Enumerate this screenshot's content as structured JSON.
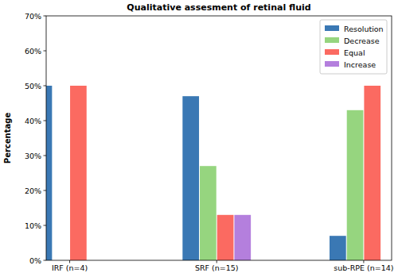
{
  "chart_data": {
    "type": "bar",
    "title": "Qualitative assesment of retinal fluid",
    "y_label": "Percentage",
    "categories": [
      "IRF (n=4)",
      "SRF (n=15)",
      "sub-RPE (n=14)"
    ],
    "series": [
      {
        "name": "Resolution",
        "color": "#3a78b4",
        "values": [
          50,
          47,
          7
        ]
      },
      {
        "name": "Decrease",
        "color": "#96d57f",
        "values": [
          0,
          27,
          43
        ]
      },
      {
        "name": "Equal",
        "color": "#fb6a61",
        "values": [
          50,
          13,
          50
        ]
      },
      {
        "name": "Increase",
        "color": "#b47fdd",
        "values": [
          0,
          13,
          0
        ]
      }
    ],
    "ylim": [
      0,
      70
    ],
    "yticks": [
      {
        "value": 0,
        "label": "0%"
      },
      {
        "value": 10,
        "label": "10%"
      },
      {
        "value": 20,
        "label": "20%"
      },
      {
        "value": 30,
        "label": "30%"
      },
      {
        "value": 40,
        "label": "40%"
      },
      {
        "value": 50,
        "label": "50%"
      },
      {
        "value": 60,
        "label": "60%"
      },
      {
        "value": 70,
        "label": "70%"
      }
    ],
    "legend": "upper right",
    "grid": false
  }
}
